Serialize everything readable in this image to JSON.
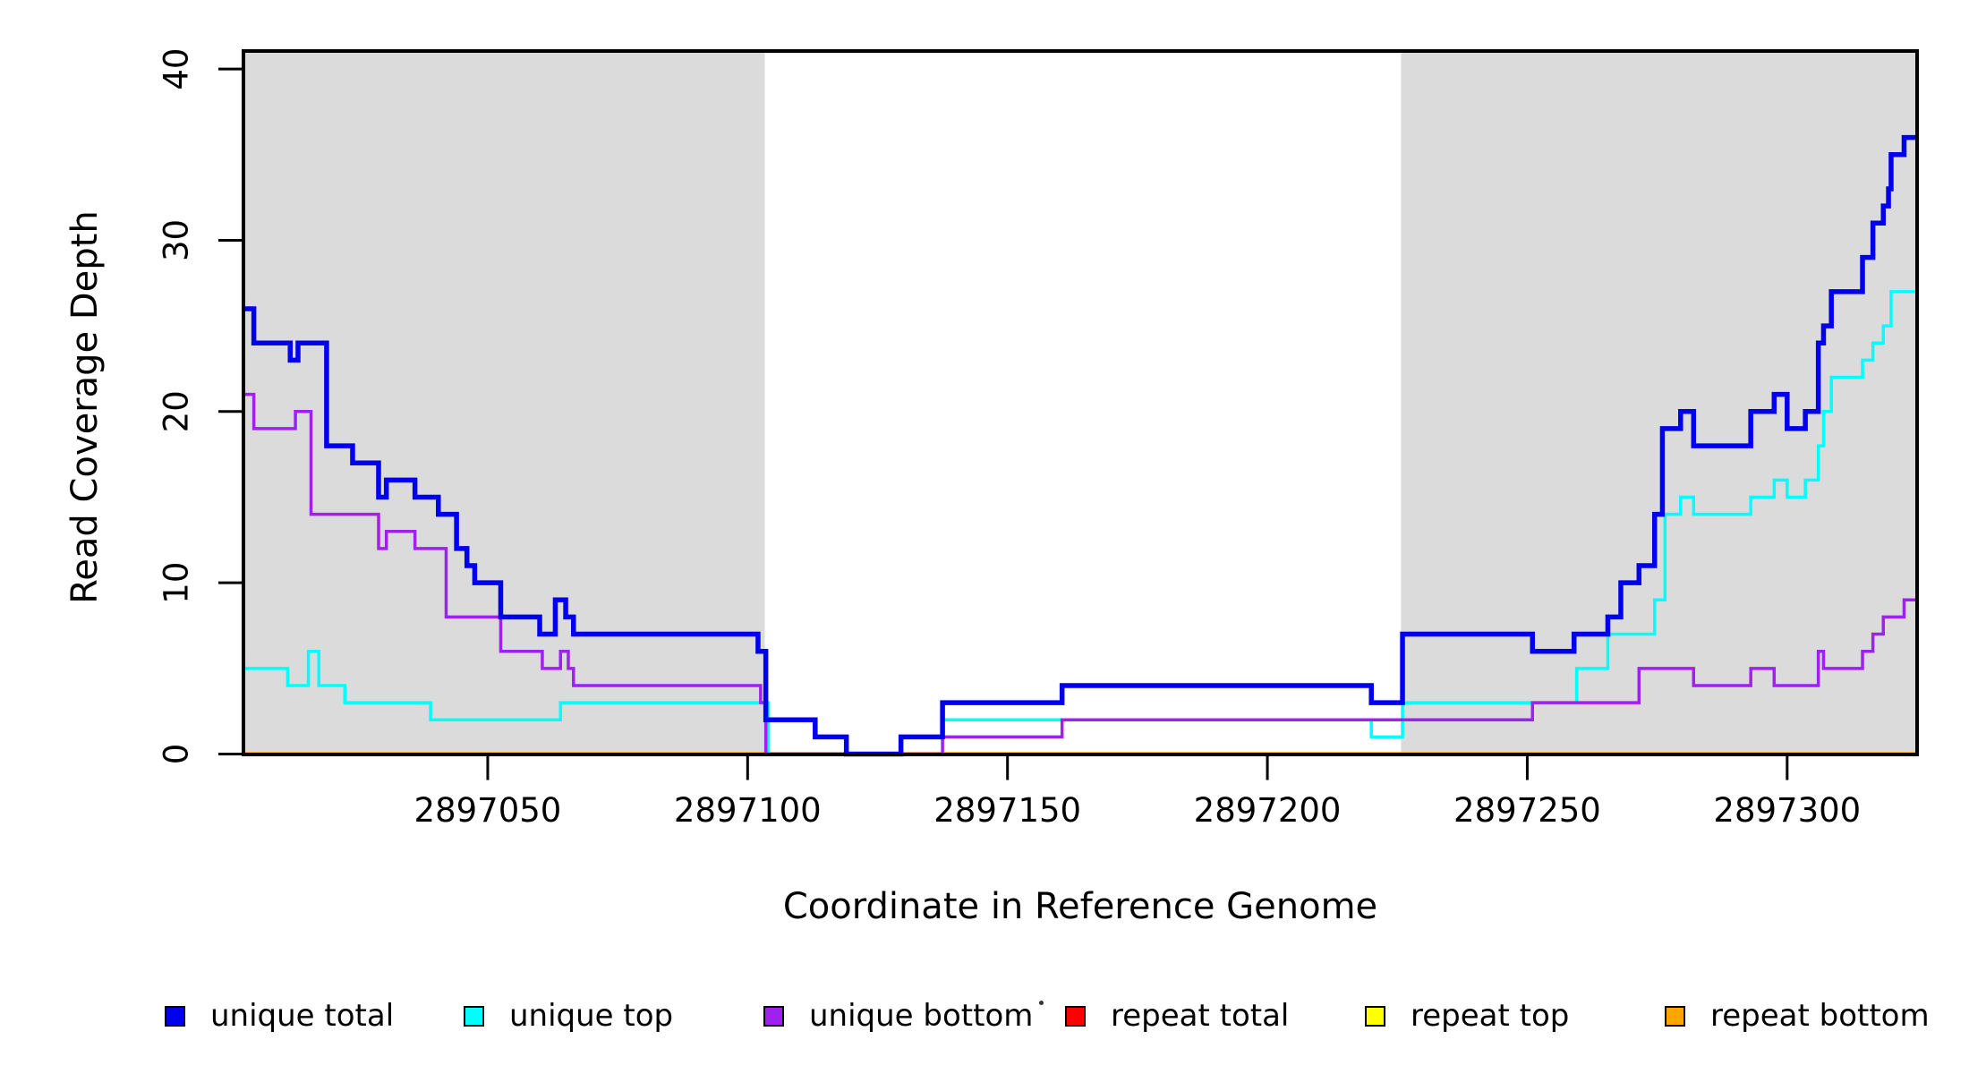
{
  "chart_data": {
    "type": "line",
    "subtype": "step-after",
    "title": "",
    "xlabel": "Coordinate in Reference Genome",
    "ylabel": "Read Coverage Depth",
    "xlim": [
      2897003,
      2897325
    ],
    "ylim": [
      0,
      41.05
    ],
    "x_ticks": [
      2897050,
      2897100,
      2897150,
      2897200,
      2897250,
      2897300
    ],
    "y_ticks": [
      0,
      10,
      20,
      30,
      40
    ],
    "grid": "off",
    "legend_position": "bottom",
    "shaded_regions": [
      {
        "x0": 2897003,
        "x1": 2897103.3,
        "color": "#DBDBDB"
      },
      {
        "x0": 2897225.7,
        "x1": 2897325,
        "color": "#DBDBDB"
      }
    ],
    "series": [
      {
        "name": "unique total",
        "color": "#0000EE",
        "width": 5.5,
        "steps": [
          [
            2897003,
            26
          ],
          [
            2897005,
            24
          ],
          [
            2897012,
            23
          ],
          [
            2897013.5,
            24
          ],
          [
            2897019,
            18
          ],
          [
            2897024,
            17
          ],
          [
            2897029,
            15
          ],
          [
            2897030.5,
            16
          ],
          [
            2897036,
            15
          ],
          [
            2897040.5,
            14
          ],
          [
            2897044,
            12
          ],
          [
            2897046,
            11
          ],
          [
            2897047.5,
            10
          ],
          [
            2897052.5,
            8
          ],
          [
            2897060,
            7
          ],
          [
            2897063,
            9
          ],
          [
            2897065,
            8
          ],
          [
            2897066.5,
            7
          ],
          [
            2897102,
            6
          ],
          [
            2897103.5,
            2
          ],
          [
            2897113,
            1
          ],
          [
            2897119,
            0
          ],
          [
            2897129.5,
            1
          ],
          [
            2897137.5,
            3
          ],
          [
            2897160.5,
            4
          ],
          [
            2897220,
            3
          ],
          [
            2897226,
            7
          ],
          [
            2897251,
            6
          ],
          [
            2897259,
            7
          ],
          [
            2897265.5,
            8
          ],
          [
            2897268,
            10
          ],
          [
            2897271.5,
            11
          ],
          [
            2897274.5,
            14
          ],
          [
            2897276,
            19
          ],
          [
            2897279.5,
            20
          ],
          [
            2897282,
            18
          ],
          [
            2897293,
            20
          ],
          [
            2897297.5,
            21
          ],
          [
            2897300,
            19
          ],
          [
            2897303.5,
            20
          ],
          [
            2897306,
            24
          ],
          [
            2897307,
            25
          ],
          [
            2897308.5,
            27
          ],
          [
            2897314.5,
            29
          ],
          [
            2897316.5,
            31
          ],
          [
            2897318.5,
            32
          ],
          [
            2897319.5,
            33
          ],
          [
            2897320,
            35
          ],
          [
            2897322.5,
            36
          ]
        ]
      },
      {
        "name": "unique top",
        "color": "#00FFFF",
        "width": 3.5,
        "steps": [
          [
            2897003,
            5
          ],
          [
            2897011.5,
            4
          ],
          [
            2897015.5,
            6
          ],
          [
            2897017.5,
            4
          ],
          [
            2897022.5,
            3
          ],
          [
            2897039,
            2
          ],
          [
            2897064,
            3
          ],
          [
            2897104,
            0
          ],
          [
            2897129.5,
            1
          ],
          [
            2897137.5,
            2
          ],
          [
            2897220,
            1
          ],
          [
            2897226,
            3
          ],
          [
            2897259.5,
            5
          ],
          [
            2897265.5,
            7
          ],
          [
            2897274.5,
            9
          ],
          [
            2897276.5,
            14
          ],
          [
            2897279.5,
            15
          ],
          [
            2897282,
            14
          ],
          [
            2897293,
            15
          ],
          [
            2897297.5,
            16
          ],
          [
            2897300,
            15
          ],
          [
            2897303.5,
            16
          ],
          [
            2897306,
            18
          ],
          [
            2897307,
            20
          ],
          [
            2897308.5,
            22
          ],
          [
            2897314.5,
            23
          ],
          [
            2897316.5,
            24
          ],
          [
            2897318.5,
            25
          ],
          [
            2897320,
            27
          ]
        ]
      },
      {
        "name": "unique bottom",
        "color": "#A020F0",
        "width": 3.5,
        "steps": [
          [
            2897003,
            21
          ],
          [
            2897005,
            19
          ],
          [
            2897013,
            20
          ],
          [
            2897016,
            14
          ],
          [
            2897029,
            12
          ],
          [
            2897030.5,
            13
          ],
          [
            2897036,
            12
          ],
          [
            2897042,
            8
          ],
          [
            2897052.5,
            6
          ],
          [
            2897060.5,
            5
          ],
          [
            2897064,
            6
          ],
          [
            2897065.5,
            5
          ],
          [
            2897066.5,
            4
          ],
          [
            2897102.5,
            3
          ],
          [
            2897103.5,
            0
          ],
          [
            2897137.5,
            1
          ],
          [
            2897160.5,
            2
          ],
          [
            2897251,
            3
          ],
          [
            2897271.5,
            5
          ],
          [
            2897282,
            4
          ],
          [
            2897293,
            5
          ],
          [
            2897297.5,
            4
          ],
          [
            2897306,
            6
          ],
          [
            2897307,
            5
          ],
          [
            2897314.5,
            6
          ],
          [
            2897316.5,
            7
          ],
          [
            2897318.5,
            8
          ],
          [
            2897322.5,
            9
          ]
        ]
      },
      {
        "name": "repeat total",
        "color": "#FF0000",
        "width": 3,
        "steps": [
          [
            2897003,
            0
          ]
        ]
      },
      {
        "name": "repeat top",
        "color": "#FFFF00",
        "width": 3,
        "steps": [
          [
            2897003,
            0
          ]
        ]
      },
      {
        "name": "repeat bottom",
        "color": "#FFA500",
        "width": 4.5,
        "steps": [
          [
            2897003,
            0
          ]
        ]
      }
    ],
    "draw_order": [
      3,
      4,
      5,
      1,
      2,
      0
    ]
  },
  "axis": {
    "x_title": "Coordinate in Reference Genome",
    "y_title": "Read Coverage Depth"
  },
  "legend": {
    "items": [
      {
        "label": "unique total",
        "color": "#0000EE"
      },
      {
        "label": "unique top",
        "color": "#00FFFF"
      },
      {
        "label": "unique bottom",
        "color": "#A020F0"
      },
      {
        "label": "repeat total",
        "color": "#FF0000"
      },
      {
        "label": "repeat top",
        "color": "#FFFF00"
      },
      {
        "label": "repeat bottom",
        "color": "#FFA500"
      }
    ]
  }
}
